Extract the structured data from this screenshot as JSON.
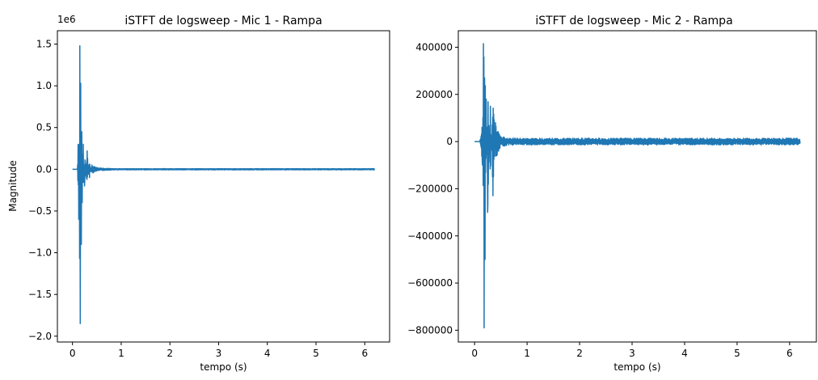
{
  "chart_data": [
    {
      "type": "line",
      "title": "iSTFT de logsweep - Mic 1 - Rampa",
      "xlabel": "tempo (s)",
      "ylabel": "Magnitude",
      "y_offset_label": "1e6",
      "xlim": [
        -0.31,
        6.51
      ],
      "ylim": [
        -2.07,
        1.66
      ],
      "xticks": [
        0,
        1,
        2,
        3,
        4,
        5,
        6
      ],
      "xtick_labels": [
        "0",
        "1",
        "2",
        "3",
        "4",
        "5",
        "6"
      ],
      "yticks": [
        -2.0,
        -1.5,
        -1.0,
        -0.5,
        0.0,
        0.5,
        1.0,
        1.5
      ],
      "ytick_labels": [
        "−2.0",
        "−1.5",
        "−1.0",
        "−0.5",
        "0.0",
        "0.5",
        "1.0",
        "1.5"
      ],
      "series_color": "#1f77b4",
      "duration_s": 6.2,
      "description_points": {
        "x": [
          0.0,
          0.1,
          0.13,
          0.15,
          0.16,
          0.17,
          0.18,
          0.19,
          0.2,
          0.22,
          0.25,
          0.3,
          0.35,
          0.4,
          0.5,
          1.0,
          6.2
        ],
        "y": [
          0.0,
          0.0,
          -0.6,
          1.48,
          -1.85,
          1.03,
          -0.9,
          0.45,
          -0.4,
          0.3,
          -0.2,
          0.22,
          -0.1,
          0.05,
          0.02,
          0.0,
          0.0
        ]
      },
      "grid": false
    },
    {
      "type": "line",
      "title": "iSTFT de logsweep - Mic 2 - Rampa",
      "xlabel": "tempo (s)",
      "ylabel": "",
      "xlim": [
        -0.31,
        6.51
      ],
      "ylim": [
        -850000,
        470000
      ],
      "xticks": [
        0,
        1,
        2,
        3,
        4,
        5,
        6
      ],
      "xtick_labels": [
        "0",
        "1",
        "2",
        "3",
        "4",
        "5",
        "6"
      ],
      "yticks": [
        -800000,
        -600000,
        -400000,
        -200000,
        0,
        200000,
        400000
      ],
      "ytick_labels": [
        "−800000",
        "−600000",
        "−400000",
        "−200000",
        "0",
        "200000",
        "400000"
      ],
      "series_color": "#1f77b4",
      "duration_s": 6.2,
      "description_points": {
        "x": [
          0.0,
          0.1,
          0.15,
          0.17,
          0.18,
          0.19,
          0.2,
          0.22,
          0.25,
          0.3,
          0.35,
          0.4,
          0.5,
          1.0,
          3.3,
          6.2
        ],
        "y": [
          0,
          0,
          -100000,
          415000,
          -790000,
          270000,
          -500000,
          180000,
          -300000,
          150000,
          -230000,
          80000,
          20000,
          10000,
          -15000,
          0
        ]
      },
      "grid": false
    }
  ]
}
